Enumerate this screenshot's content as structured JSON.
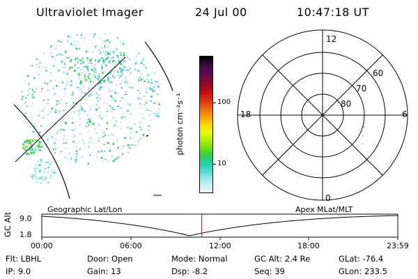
{
  "header": {
    "instrument": "Ultraviolet Imager",
    "date": "24 Jul 00",
    "time": "10:47:18 UT"
  },
  "colorbar": {
    "label": "photon cm⁻²s⁻¹",
    "ticks": [
      "100",
      "10"
    ],
    "colors": [
      "#000000",
      "#3c0a3c",
      "#5a0a5a",
      "#7a0a3a",
      "#a00a1a",
      "#d01010",
      "#e03a10",
      "#f06a10",
      "#f8a000",
      "#f8d800",
      "#e8f800",
      "#b8f000",
      "#78e000",
      "#30d040",
      "#20d0a0",
      "#40d8d0",
      "#90e8e8",
      "#c8f0f0",
      "#e8f8f8"
    ]
  },
  "polar": {
    "labels": {
      "top": "12",
      "bottom": "0",
      "left": "18",
      "right": "6"
    },
    "rings": [
      "60",
      "70",
      "80"
    ]
  },
  "timeline": {
    "y_axis_label": "GC Alt",
    "y_ticks": [
      "9.0",
      "1.8"
    ],
    "left_title": "Geographic Lat/Lon",
    "right_title": "Apex MLat/MLT",
    "x_ticks": [
      "00:00",
      "06:00",
      "12:00",
      "18:00",
      "23:59"
    ],
    "marker_color": "#cc0000",
    "marker_fraction": 0.4495
  },
  "status": {
    "row1": [
      {
        "label": "Flt:",
        "value": "LBHL"
      },
      {
        "label": "Door:",
        "value": "Open"
      },
      {
        "label": "Mode:",
        "value": "Normal"
      },
      {
        "label": "GC Alt:",
        "value": "2.4 Re"
      },
      {
        "label": "GLat:",
        "value": "-76.4"
      }
    ],
    "row2": [
      {
        "label": "IP:",
        "value": "9.0"
      },
      {
        "label": "Gain:",
        "value": "13"
      },
      {
        "label": "Dsp:",
        "value": "-8.2"
      },
      {
        "label": "Seq:",
        "value": "39"
      },
      {
        "label": "GLon:",
        "value": "233.5"
      }
    ]
  }
}
